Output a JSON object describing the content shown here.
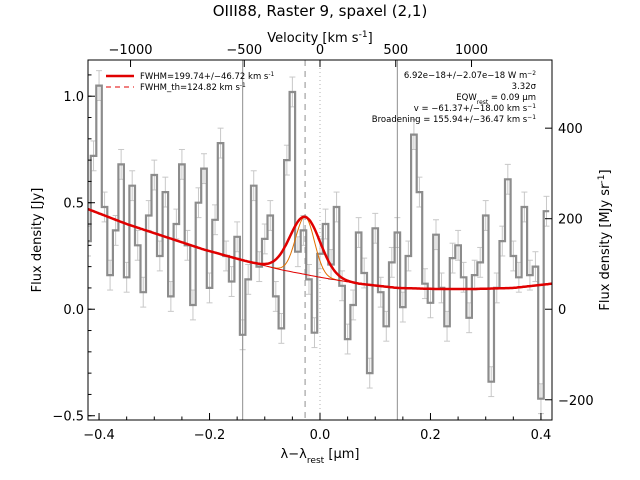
{
  "chart_data": {
    "type": "line",
    "title": "OIII88, Raster 9, spaxel (2,1)",
    "xlabel": "λ−λ",
    "xlabel_sub": "rest",
    "xlabel_unit": " [μm]",
    "ylabel": "Flux density [Jy]",
    "top_xlabel": "Velocity [km s",
    "top_xlabel_sup": "-1",
    "top_xlabel_end": "]",
    "right_ylabel": "Flux density [MJy sr",
    "right_ylabel_sup": "-1",
    "right_ylabel_end": "]",
    "xlim": [
      -0.42,
      0.42
    ],
    "ylim": [
      -0.52,
      1.17
    ],
    "x_ticks": [
      -0.4,
      -0.2,
      0.0,
      0.2,
      0.4
    ],
    "x_tick_labels": [
      "−0.4",
      "−0.2",
      "0.0",
      "0.2",
      "0.4"
    ],
    "y_ticks": [
      -0.5,
      0.0,
      0.5,
      1.0
    ],
    "y_tick_labels": [
      "−0.5",
      "0.0",
      "0.5",
      "1.0"
    ],
    "top_ticks_x": [
      -0.343,
      -0.1371,
      0.0,
      0.1371,
      0.2743
    ],
    "top_tick_labels": [
      "−1000",
      "−500",
      "0",
      "500",
      "1000"
    ],
    "right_ticks_y": [
      -0.425,
      0.0,
      0.425,
      0.85
    ],
    "right_tick_labels": [
      "−200",
      "0",
      "200",
      "400"
    ],
    "vlines_solid_x": [
      -0.14,
      0.14
    ],
    "vline_dashed_x": -0.027,
    "vline_dotted_x": 0.0,
    "spectrum": {
      "name": "data",
      "color": "#8c8c8c",
      "x": [
        -0.42,
        -0.41,
        -0.4,
        -0.39,
        -0.38,
        -0.37,
        -0.36,
        -0.35,
        -0.34,
        -0.33,
        -0.32,
        -0.31,
        -0.3,
        -0.29,
        -0.28,
        -0.27,
        -0.26,
        -0.25,
        -0.24,
        -0.23,
        -0.22,
        -0.21,
        -0.2,
        -0.19,
        -0.18,
        -0.17,
        -0.16,
        -0.15,
        -0.14,
        -0.13,
        -0.12,
        -0.11,
        -0.1,
        -0.09,
        -0.08,
        -0.07,
        -0.06,
        -0.05,
        -0.04,
        -0.03,
        -0.02,
        -0.01,
        0.0,
        0.01,
        0.02,
        0.03,
        0.04,
        0.05,
        0.06,
        0.07,
        0.08,
        0.09,
        0.1,
        0.11,
        0.12,
        0.13,
        0.14,
        0.15,
        0.16,
        0.17,
        0.18,
        0.19,
        0.2,
        0.21,
        0.22,
        0.23,
        0.24,
        0.25,
        0.26,
        0.27,
        0.28,
        0.29,
        0.3,
        0.31,
        0.32,
        0.33,
        0.34,
        0.35,
        0.36,
        0.37,
        0.38,
        0.39,
        0.4,
        0.41
      ],
      "y": [
        0.32,
        0.72,
        1.05,
        0.48,
        0.16,
        0.37,
        0.68,
        0.15,
        0.58,
        0.3,
        0.08,
        0.44,
        0.63,
        0.25,
        0.55,
        0.06,
        0.4,
        0.68,
        0.3,
        0.02,
        0.5,
        0.66,
        0.1,
        0.42,
        0.78,
        0.25,
        0.13,
        0.34,
        -0.12,
        0.14,
        0.58,
        0.2,
        0.33,
        0.44,
        0.06,
        -0.09,
        0.7,
        1.02,
        0.27,
        0.37,
        0.14,
        -0.11,
        0.26,
        0.4,
        0.21,
        0.48,
        0.11,
        -0.14,
        0.02,
        0.36,
        0.17,
        -0.3,
        0.38,
        0.08,
        -0.08,
        0.22,
        0.36,
        0.01,
        0.25,
        0.82,
        0.55,
        0.12,
        0.03,
        0.35,
        0.1,
        -0.08,
        0.24,
        0.3,
        0.15,
        -0.04,
        0.16,
        0.22,
        0.44,
        -0.34,
        0.1,
        0.32,
        0.61,
        0.25,
        0.15,
        0.48,
        0.16,
        0.2,
        -0.42,
        0.46
      ],
      "err": 0.07
    },
    "continuum": {
      "name": "continuum",
      "color": "#e00000",
      "x": [
        -0.42,
        -0.35,
        -0.28,
        -0.21,
        -0.14,
        -0.07,
        0.0,
        0.07,
        0.14,
        0.21,
        0.28,
        0.35,
        0.42
      ],
      "y": [
        0.47,
        0.4,
        0.34,
        0.28,
        0.23,
        0.185,
        0.15,
        0.12,
        0.1,
        0.095,
        0.095,
        0.1,
        0.12
      ]
    },
    "fit": {
      "name": "FWHM=199.74+/−46.72 km s",
      "name_sup": "-1",
      "color": "#e00000",
      "center": -0.027,
      "amplitude": 0.27,
      "sigma": 0.0275
    },
    "fit_theoretical": {
      "name": "FWHM_th=124.82 km s",
      "name_sup": "-1",
      "color": "#e07000",
      "center": -0.027,
      "amplitude": 0.27,
      "sigma": 0.017
    },
    "legend_placement": "top-left",
    "annotations": [
      {
        "text": "6.92e−18+/−2.07e−18 W m",
        "sup": "−2"
      },
      {
        "text": "3.32σ"
      },
      {
        "text": "EQW",
        "sub": "rest",
        "tail": " = 0.09 μm"
      },
      {
        "text": "v = −61.37+/−18.00 km s",
        "sup": "−1"
      },
      {
        "text": "Broadening = 155.94+/−36.47 km s",
        "sup": "−1"
      }
    ],
    "grid": false
  }
}
